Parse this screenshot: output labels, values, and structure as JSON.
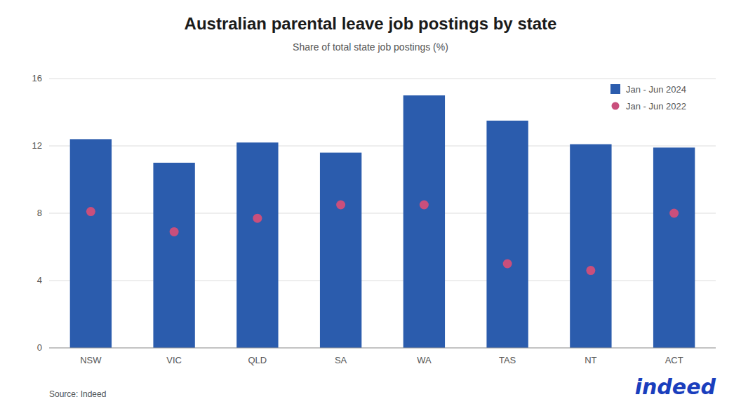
{
  "chart_data": {
    "type": "bar",
    "title": "Australian parental leave job postings by state",
    "subtitle": "Share of total state job postings (%)",
    "categories": [
      "NSW",
      "VIC",
      "QLD",
      "SA",
      "WA",
      "TAS",
      "NT",
      "ACT"
    ],
    "series": [
      {
        "name": "Jan - Jun 2024",
        "color": "#2b5cad",
        "values": [
          12.4,
          11.0,
          12.2,
          11.6,
          15.0,
          13.5,
          12.1,
          11.9
        ]
      },
      {
        "name": "Jan - Jun 2022",
        "type": "scatter",
        "marker": "circle",
        "color": "#c94f7c",
        "values": [
          8.1,
          6.9,
          7.7,
          8.5,
          8.5,
          5.0,
          4.6,
          8.0
        ]
      }
    ],
    "ylim": [
      0,
      16
    ],
    "yticks": [
      0,
      4,
      8,
      12,
      16
    ],
    "grid": true,
    "legend": "upper right",
    "annotations": [
      "Source: Indeed",
      "indeed"
    ]
  }
}
